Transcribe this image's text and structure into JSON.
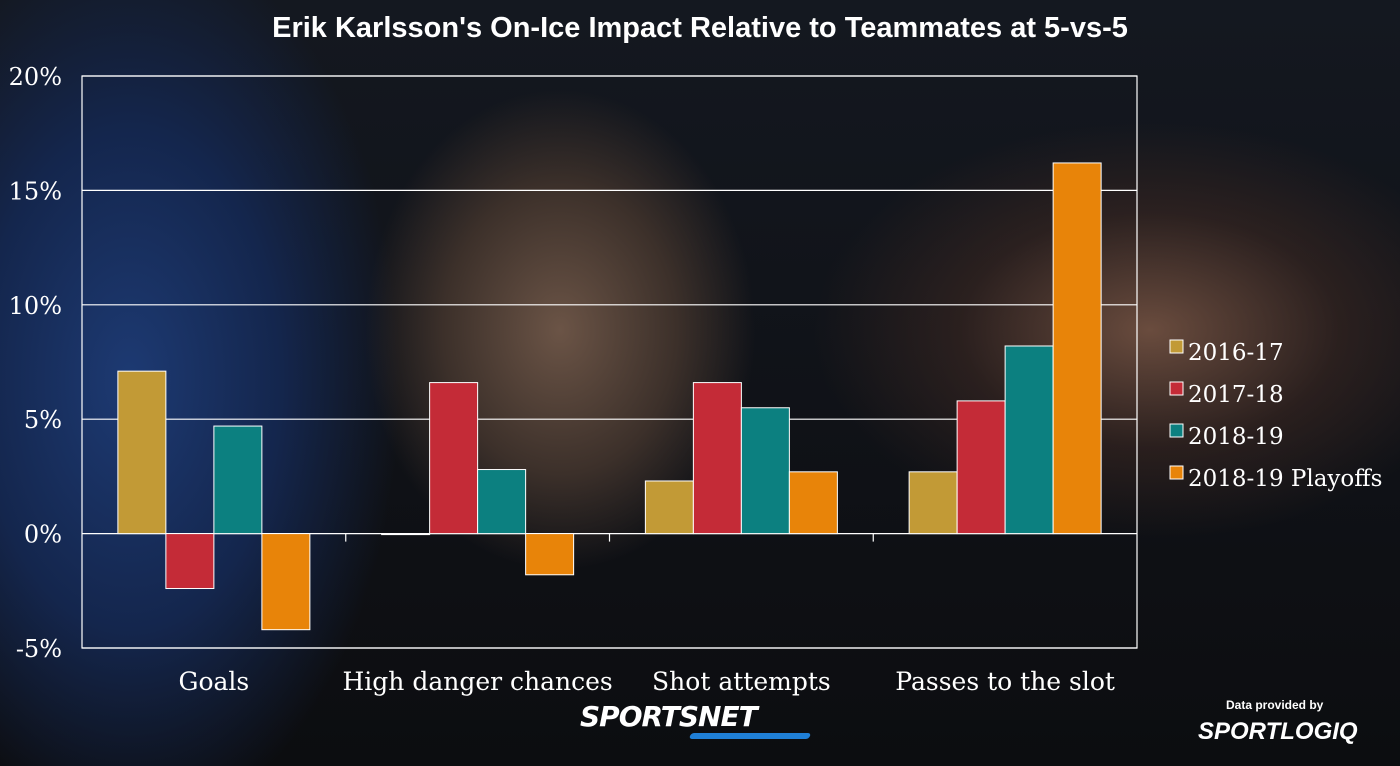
{
  "chart_data": {
    "type": "bar",
    "title": "Erik Karlsson's On-Ice Impact Relative to Teammates at 5-vs-5",
    "categories": [
      "Goals",
      "High danger chances",
      "Shot attempts",
      "Passes to the slot"
    ],
    "series": [
      {
        "name": "2016-17",
        "color": "#c29a36",
        "values": [
          7.1,
          0.0,
          2.3,
          2.7
        ]
      },
      {
        "name": "2017-18",
        "color": "#c42b37",
        "values": [
          -2.4,
          6.6,
          6.6,
          5.8
        ]
      },
      {
        "name": "2018-19",
        "color": "#0c8080",
        "values": [
          4.7,
          2.8,
          5.5,
          8.2
        ]
      },
      {
        "name": "2018-19 Playoffs",
        "color": "#e88409",
        "values": [
          -4.2,
          -1.8,
          2.7,
          16.2
        ]
      }
    ],
    "yticks": [
      "20%",
      "15%",
      "10%",
      "5%",
      "0%",
      "-5%"
    ],
    "ytick_values": [
      20,
      15,
      10,
      5,
      0,
      -5
    ],
    "ylim": [
      -5,
      20
    ],
    "xlabel": "",
    "ylabel": "",
    "grid": true,
    "legend_position": "right"
  },
  "footer": {
    "brand": "SPORTSNET",
    "credit_label": "Data provided by",
    "credit_logo": "SPORTLOGIQ"
  }
}
